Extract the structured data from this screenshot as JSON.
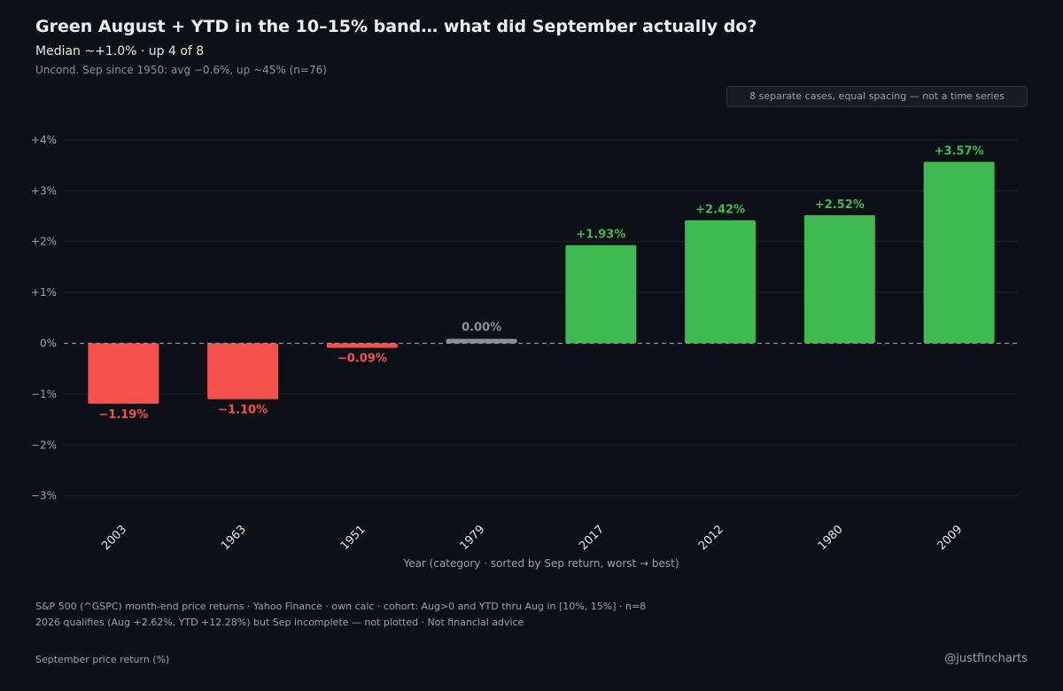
{
  "title": "Green August + YTD in the 10–15% band… what did September actually do?",
  "subtitle": "Median ~+1.0% · up 4 of 8",
  "subnote": "Uncond. Sep since 1950: avg −0.6%, up ~45% (n=76)",
  "badge": "8 separate cases, equal spacing — not a time series",
  "footnotes": [
    "S&P 500 (^GSPC) month-end price returns · Yahoo Finance · own calc · cohort: Aug>0 and YTD thru Aug in [10%, 15%] · n=8",
    "2026 qualifies (Aug +2.62%, YTD +12.28%) but Sep incomplete — not plotted · Not financial advice"
  ],
  "ylabel_note": "September price return (%)",
  "handle": "@justfincharts",
  "colors": {
    "background": "#0d1017",
    "positive": "#3fba53",
    "negative": "#f5524d",
    "neutral": "#8a8f99",
    "grid": "#20242c"
  },
  "chart_data": {
    "type": "bar",
    "title": "Green August + YTD in the 10–15% band… what did September actually do?",
    "xlabel": "Year (category · sorted by Sep return, worst → best)",
    "ylabel": "September price return (%)",
    "categories": [
      "2003",
      "1963",
      "1951",
      "1979",
      "2017",
      "2012",
      "1980",
      "2009"
    ],
    "values": [
      -1.19,
      -1.1,
      -0.09,
      0.0,
      1.93,
      2.42,
      2.52,
      3.57
    ],
    "value_labels": [
      "−1.19%",
      "−1.10%",
      "−0.09%",
      "0.00%",
      "+1.93%",
      "+2.42%",
      "+2.52%",
      "+3.57%"
    ],
    "ylim": [
      -3.3,
      4.3
    ],
    "yticks": [
      4,
      3,
      2,
      1,
      0,
      -1,
      -2,
      -3
    ],
    "ytick_labels": [
      "+4%",
      "+3%",
      "+2%",
      "+1%",
      "0%",
      "−1%",
      "−2%",
      "−3%"
    ],
    "grid": true,
    "zero_line": "dashed"
  }
}
